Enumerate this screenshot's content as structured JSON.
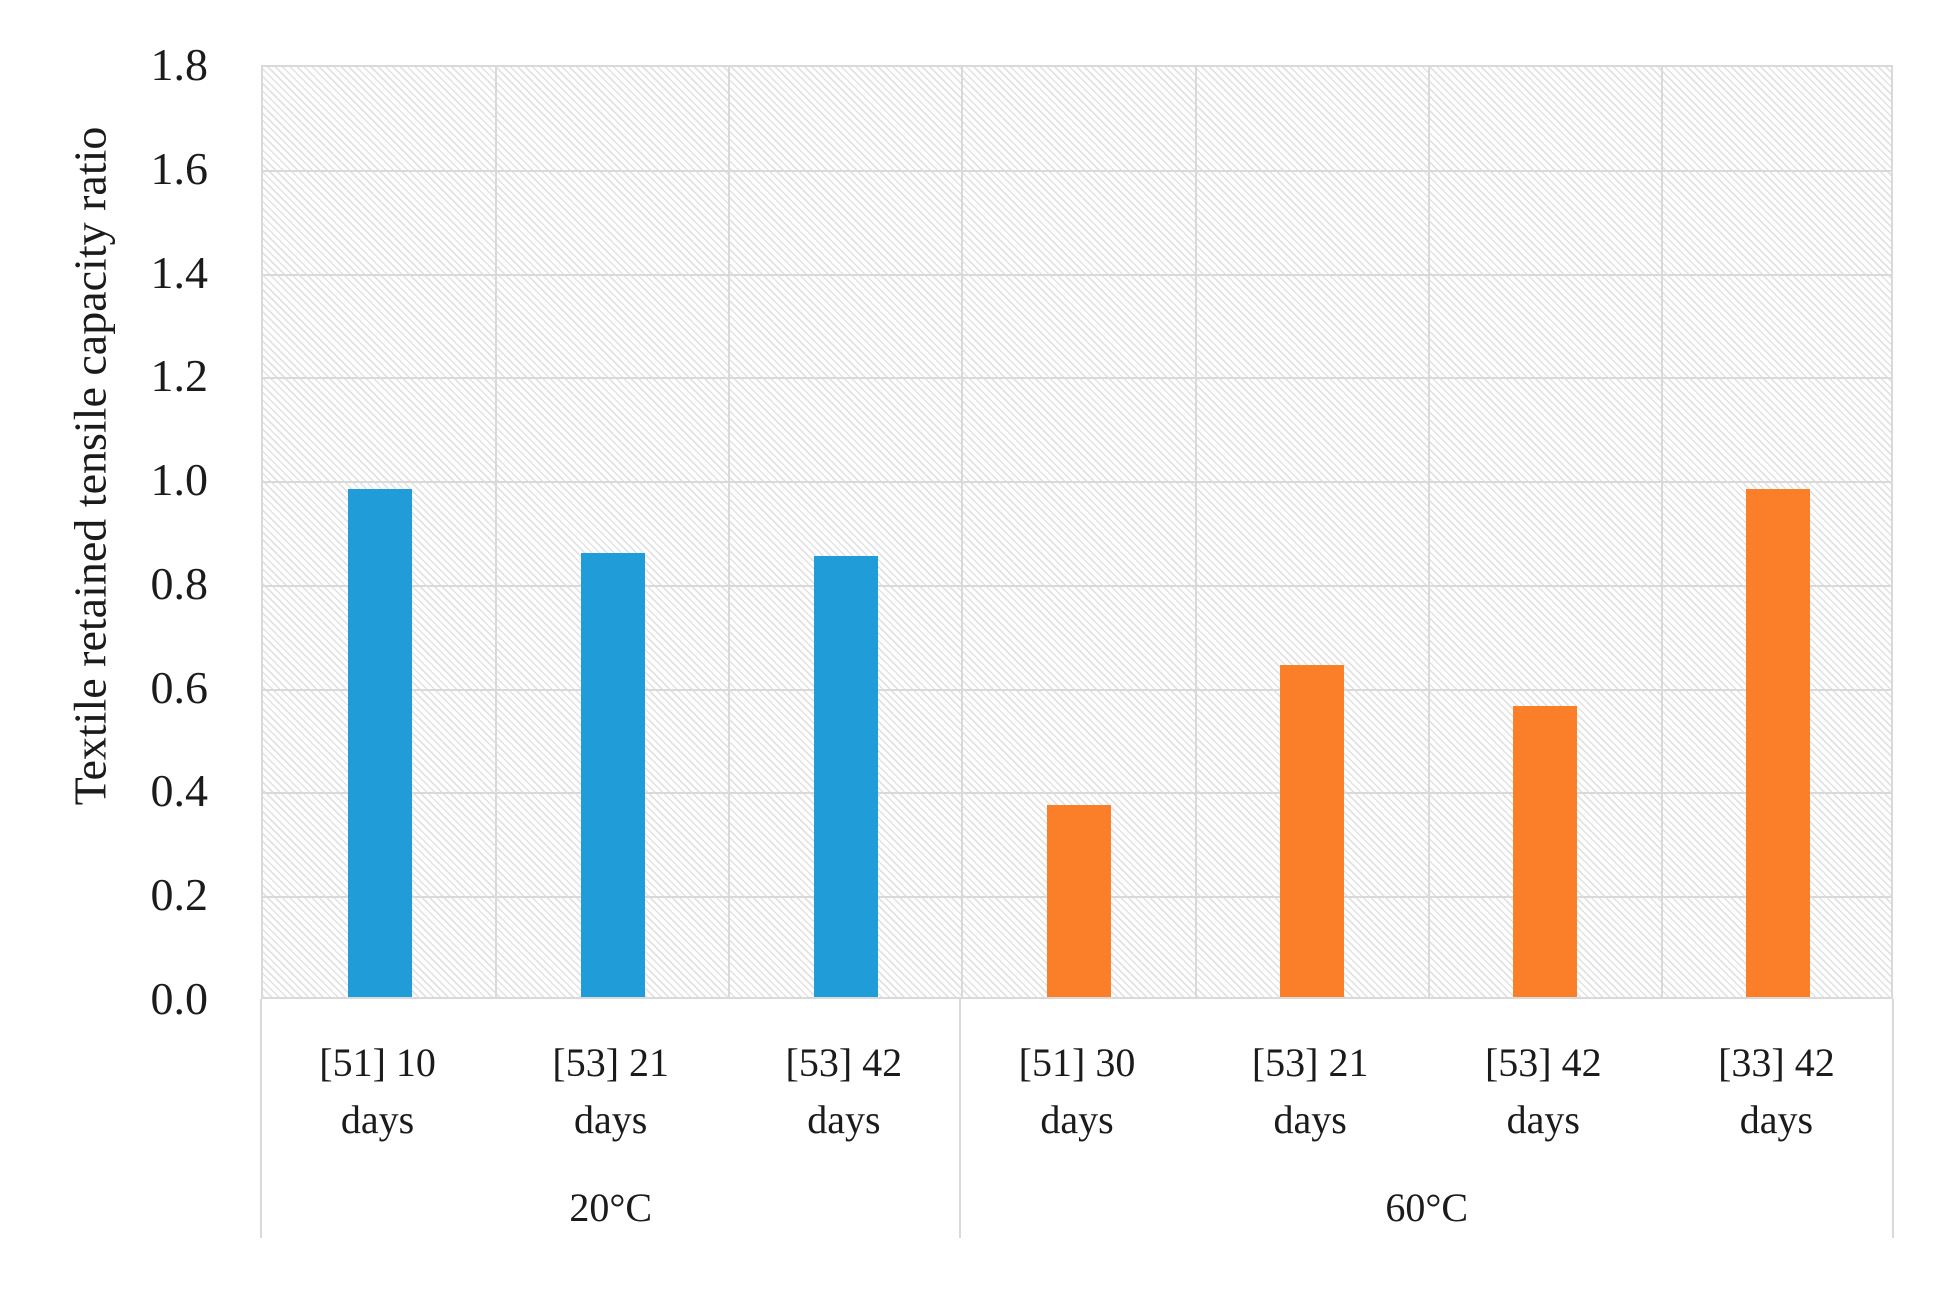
{
  "chart_data": {
    "type": "bar",
    "title": "",
    "y_axis_title": "Textile retained tensile capacity ratio",
    "xlabel": "",
    "ylabel": "Textile retained tensile capacity ratio",
    "ylim": [
      0,
      1.8
    ],
    "y_step": 0.2,
    "y_ticks": [
      "0.0",
      "0.2",
      "0.4",
      "0.6",
      "0.8",
      "1.0",
      "1.2",
      "1.4",
      "1.6",
      "1.8"
    ],
    "grid": true,
    "legend": "none",
    "plot_background": "light-diagonal-hatch",
    "groups": [
      {
        "label": "20°C",
        "color": "#209CD8",
        "bars": [
          {
            "lines": [
              "[51] 10",
              "days"
            ],
            "label": "[51] 10 days",
            "value": 0.98
          },
          {
            "lines": [
              "[53] 21",
              "days"
            ],
            "label": "[53] 21 days",
            "value": 0.855
          },
          {
            "lines": [
              "[53] 42",
              "days"
            ],
            "label": "[53] 42 days",
            "value": 0.85
          }
        ]
      },
      {
        "label": "60°C",
        "color": "#FB7E28",
        "bars": [
          {
            "lines": [
              "[51] 30",
              "days"
            ],
            "label": "[51] 30 days",
            "value": 0.37
          },
          {
            "lines": [
              "[53] 21",
              "days"
            ],
            "label": "[53] 21 days",
            "value": 0.64
          },
          {
            "lines": [
              "[53] 42",
              "days"
            ],
            "label": "[53] 42 days",
            "value": 0.56
          },
          {
            "lines": [
              "[33] 42",
              "days"
            ],
            "label": "[33] 42 days",
            "value": 0.98
          }
        ]
      }
    ],
    "colors": {
      "bar_blue": "#209CD8",
      "bar_orange": "#FB7E28",
      "gridline": "#D9D9D9",
      "text": "#1B1B1B",
      "plot_hatch": "#E2E2E2"
    }
  }
}
